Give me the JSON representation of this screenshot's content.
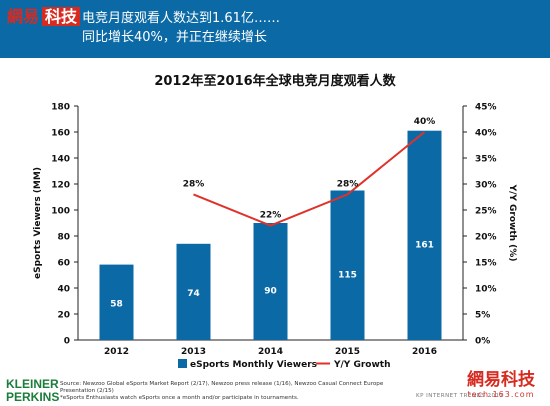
{
  "header": {
    "logo_a": "網易",
    "logo_b": "科技",
    "headline_line1": "电竞月度观看人数达到1.61亿……",
    "headline_line2": "同比增长40%，并正在继续增长"
  },
  "chart_data": {
    "type": "bar",
    "title": "2012年至2016年全球电竞月度观看人数",
    "categories": [
      "2012",
      "2013",
      "2014",
      "2015",
      "2016"
    ],
    "series": [
      {
        "name": "eSports Monthly Viewers",
        "type": "bar",
        "axis": "left",
        "values": [
          58,
          74,
          90,
          115,
          161
        ],
        "color": "#0b6aa6"
      },
      {
        "name": "Y/Y Growth",
        "type": "line",
        "axis": "right",
        "values": [
          null,
          28,
          22,
          28,
          40
        ],
        "labels": [
          "",
          "28%",
          "22%",
          "28%",
          "40%"
        ],
        "color": "#e0312a"
      }
    ],
    "ylabel": "eSports Viewers (MM)",
    "y2label": "Y/Y Growth (%)",
    "ylim": [
      0,
      180
    ],
    "y2lim": [
      0,
      45
    ],
    "yticks": [
      "0",
      "20",
      "40",
      "60",
      "80",
      "100",
      "120",
      "140",
      "160",
      "180"
    ],
    "y2ticks": [
      "0%",
      "5%",
      "10%",
      "15%",
      "20%",
      "25%",
      "30%",
      "35%",
      "40%",
      "45%"
    ],
    "legend_position": "bottom",
    "grid": false
  },
  "footer": {
    "brand_line1": "KLEINER",
    "brand_line2": "PERKINS",
    "source_line1": "Source: Newzoo Global eSports Market Report (2/17), Newzoo press release (1/16), Newzoo Casual Connect Europe Presentation (2/15)",
    "source_line2": "*eSports Enthusiasts watch eSports once a month and/or participate in tournaments.",
    "kp_text": "KP INTERNET TRENDS 2017",
    "watermark_logo_a": "網易",
    "watermark_logo_b": "科技",
    "watermark_url": "tech.163.com"
  }
}
